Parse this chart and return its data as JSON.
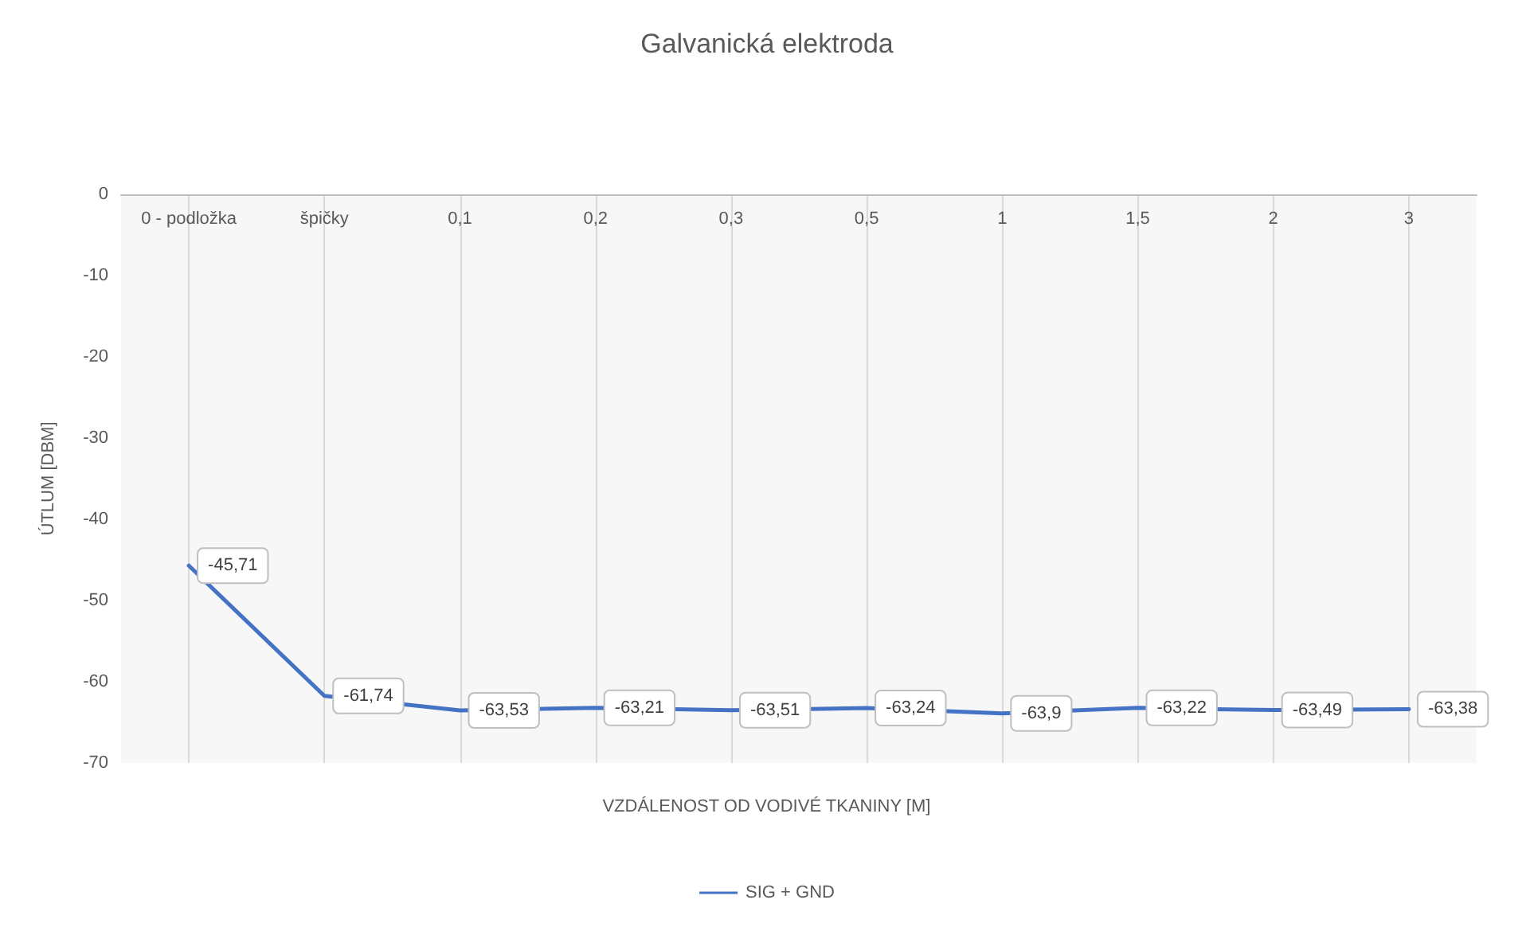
{
  "chart_data": {
    "type": "line",
    "title": "Galvanická elektroda",
    "xlabel": "VZDÁLENOST OD VODIVÉ TKANINY [M]",
    "ylabel": "ÚTLUM [DBM]",
    "categories": [
      "0 - podložka",
      "špičky",
      "0,1",
      "0,2",
      "0,3",
      "0,5",
      "1",
      "1,5",
      "2",
      "3"
    ],
    "series": [
      {
        "name": "SIG + GND",
        "color": "#4472c4",
        "values": [
          -45.71,
          -61.74,
          -63.53,
          -63.21,
          -63.51,
          -63.24,
          -63.9,
          -63.22,
          -63.49,
          -63.38
        ],
        "value_labels": [
          "-45,71",
          "-61,74",
          "-63,53",
          "-63,21",
          "-63,51",
          "-63,24",
          "-63,9",
          "-63,22",
          "-63,49",
          "-63,38"
        ]
      }
    ],
    "ylim": [
      -70,
      0
    ],
    "yticks": [
      0,
      -10,
      -20,
      -30,
      -40,
      -50,
      -60,
      -70
    ],
    "grid": "x",
    "legend": "bottom",
    "marker": "none",
    "line_style": "solid"
  }
}
